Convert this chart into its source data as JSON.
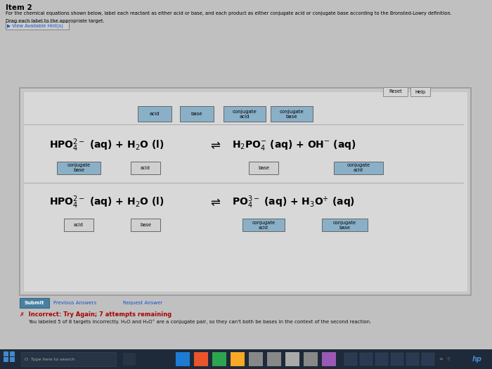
{
  "bg_color": "#c0c0c0",
  "panel_outer_color": "#b8b8b8",
  "panel_inner_color": "#d8d8d8",
  "label_filled_color": "#8ab0c8",
  "label_empty_color": "#d0d0d0",
  "title": "Item 2",
  "instructions1": "For the chemical equations shown below, label each reactant as either acid or base, and each product as either conjugate acid or conjugate base according to the Bronsted-Lowry definition.",
  "instructions2": "Drag each label to the appropriate target.",
  "hint_text": "▶ View Available Hint(s)",
  "reset_btn": "Reset",
  "help_btn": "Help",
  "top_labels": [
    "acid",
    "base",
    "conjugate\nacid",
    "conjugate\nbase"
  ],
  "r1_labels": [
    "conjugate\nbase",
    "acid",
    "base",
    "conjugate\nacid"
  ],
  "r1_filled": [
    true,
    false,
    false,
    true
  ],
  "r2_labels": [
    "acid",
    "base",
    "conjugate\nacid",
    "conjugate\nbase"
  ],
  "r2_filled": [
    false,
    false,
    true,
    true
  ],
  "submit_btn": "Submit",
  "prev_answers": "Previous Answers",
  "request_answer": "Request Answer",
  "incorrect_text": "✗  Incorrect: Try Again; 7 attempts remaining",
  "feedback_text": "You labeled 5 of 8 targets incorrectly. H₂O and H₃O⁺ are a conjugate pair, so they can't both be bases in the context of the second reaction.",
  "taskbar_bg": "#1e2a3a",
  "search_text": "O  Type here to search",
  "hp_color": "#4488cc"
}
